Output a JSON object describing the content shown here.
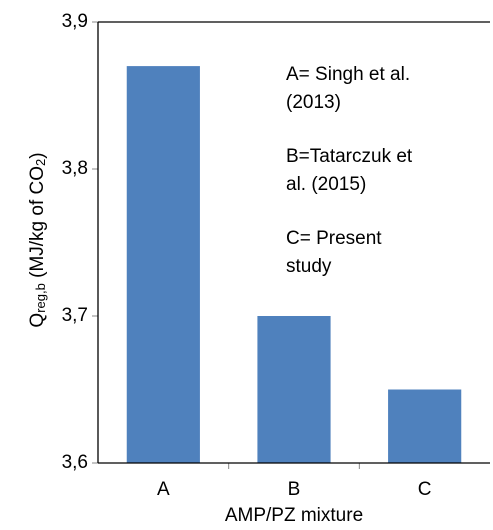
{
  "chart_data": {
    "type": "bar",
    "ylabel": [
      "Q",
      "reg,b",
      " (MJ/kg of CO",
      "2",
      ")"
    ],
    "xlabel": "AMP/PZ mixture",
    "categories": [
      "A",
      "B",
      "C"
    ],
    "values": [
      3.87,
      3.7,
      3.65
    ],
    "color": "#4f81bd",
    "ylim": [
      3.6,
      3.9
    ],
    "yticks": [
      {
        "value": 3.6,
        "label": "3,6"
      },
      {
        "value": 3.7,
        "label": "3,7"
      },
      {
        "value": 3.8,
        "label": "3,8"
      },
      {
        "value": 3.9,
        "label": "3,9"
      }
    ],
    "grid": false,
    "annotations": [
      [
        "A= Singh et al.",
        "(2013)"
      ],
      [
        "B=Tatarczuk et",
        "al. (2015)"
      ],
      [
        "C= Present",
        "study"
      ]
    ]
  }
}
